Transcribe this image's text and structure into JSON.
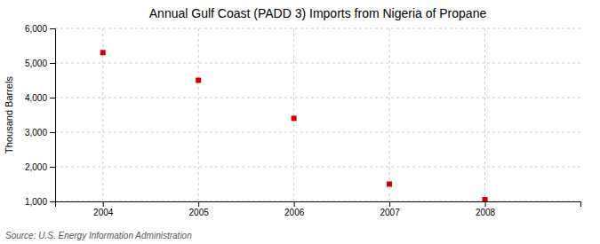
{
  "chart_data": {
    "type": "scatter",
    "title": "Annual Gulf Coast (PADD 3) Imports from Nigeria of Propane",
    "ylabel": "Thousand Barrels",
    "source": "Source: U.S. Energy Information Administration",
    "x": [
      2004,
      2005,
      2006,
      2007,
      2008
    ],
    "values": [
      5300,
      4500,
      3400,
      1500,
      1050
    ],
    "color": "#cc0000",
    "marker": "square",
    "xlim": [
      2003.5,
      2009.0
    ],
    "xticks": [
      2004,
      2005,
      2006,
      2007,
      2008
    ],
    "ylim": [
      1000,
      6000
    ],
    "yticks": [
      {
        "value": 1000,
        "label": "1,000"
      },
      {
        "value": 2000,
        "label": "2,000"
      },
      {
        "value": 3000,
        "label": "3,000"
      },
      {
        "value": 4000,
        "label": "4,000"
      },
      {
        "value": 5000,
        "label": "5,000"
      },
      {
        "value": 6000,
        "label": "6,000"
      }
    ],
    "grid": true
  }
}
